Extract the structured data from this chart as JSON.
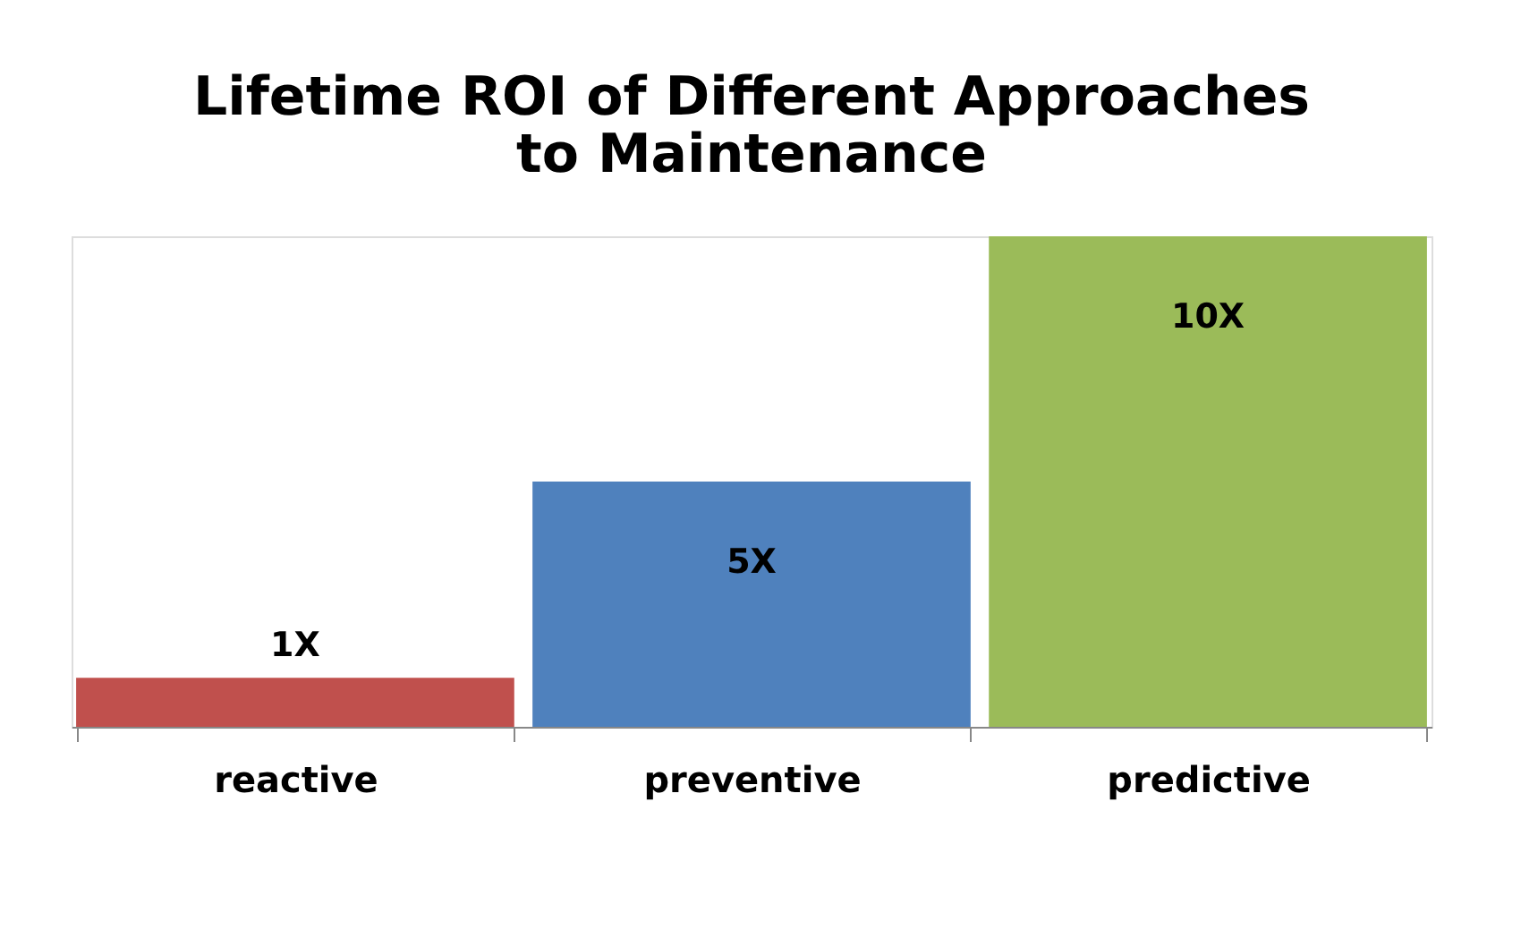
{
  "chart_data": {
    "type": "bar",
    "title": "Lifetime ROI of Different Approaches\nto Maintenance",
    "categories": [
      "reactive",
      "preventive",
      "predictive"
    ],
    "values": [
      1,
      5,
      10
    ],
    "value_labels": [
      "1X",
      "5X",
      "10X"
    ],
    "colors": [
      "#c0504d",
      "#4f81bd",
      "#9bbb59"
    ]
  }
}
